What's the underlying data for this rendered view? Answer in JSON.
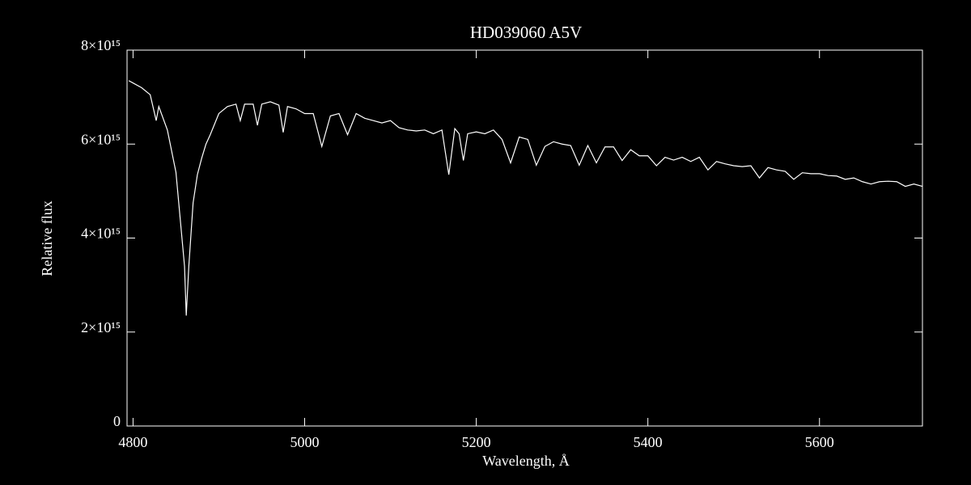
{
  "chart_data": {
    "type": "line",
    "title": "HD039060   A5V",
    "x_label": "Wavelength, Å",
    "y_label": "Relative flux",
    "x": [
      4795,
      4800,
      4810,
      4820,
      4827,
      4830,
      4840,
      4850,
      4855,
      4860,
      4862,
      4865,
      4870,
      4875,
      4880,
      4885,
      4890,
      4900,
      4910,
      4920,
      4925,
      4930,
      4940,
      4945,
      4950,
      4960,
      4970,
      4975,
      4980,
      4990,
      5000,
      5010,
      5020,
      5030,
      5040,
      5050,
      5060,
      5070,
      5080,
      5090,
      5100,
      5110,
      5120,
      5130,
      5140,
      5150,
      5160,
      5168,
      5175,
      5180,
      5185,
      5190,
      5200,
      5210,
      5220,
      5230,
      5240,
      5250,
      5260,
      5270,
      5280,
      5290,
      5300,
      5310,
      5320,
      5330,
      5340,
      5350,
      5360,
      5370,
      5380,
      5390,
      5400,
      5410,
      5420,
      5430,
      5440,
      5450,
      5460,
      5470,
      5480,
      5490,
      5500,
      5510,
      5520,
      5530,
      5540,
      5550,
      5560,
      5570,
      5580,
      5590,
      5600,
      5610,
      5620,
      5630,
      5640,
      5650,
      5660,
      5670,
      5680,
      5690,
      5700,
      5710,
      5720
    ],
    "series": [
      {
        "name": "HD039060",
        "color": "#ffffff",
        "values": [
          7350000000000000.0,
          7300000000000000.0,
          7200000000000000.0,
          7050000000000000.0,
          6500000000000000.0,
          6800000000000000.0,
          6300000000000000.0,
          5400000000000000.0,
          4400000000000000.0,
          3400000000000000.0,
          2350000000000000.0,
          3400000000000000.0,
          4750000000000000.0,
          5350000000000000.0,
          5700000000000000.0,
          6000000000000000.0,
          6200000000000000.0,
          6650000000000000.0,
          6800000000000000.0,
          6850000000000000.0,
          6500000000000000.0,
          6850000000000000.0,
          6850000000000000.0,
          6400000000000000.0,
          6850000000000000.0,
          6900000000000000.0,
          6830000000000000.0,
          6250000000000000.0,
          6800000000000000.0,
          6750000000000000.0,
          6650000000000000.0,
          6650000000000000.0,
          5950000000000000.0,
          6600000000000000.0,
          6650000000000000.0,
          6200000000000000.0,
          6650000000000000.0,
          6550000000000000.0,
          6500000000000000.0,
          6450000000000000.0,
          6500000000000000.0,
          6350000000000000.0,
          6300000000000000.0,
          6280000000000000.0,
          6300000000000000.0,
          6220000000000000.0,
          6300000000000000.0,
          5350000000000000.0,
          6330000000000000.0,
          6220000000000000.0,
          5650000000000000.0,
          6220000000000000.0,
          6260000000000000.0,
          6220000000000000.0,
          6300000000000000.0,
          6100000000000000.0,
          5600000000000000.0,
          6150000000000000.0,
          6100000000000000.0,
          5550000000000000.0,
          5950000000000000.0,
          6050000000000000.0,
          6000000000000000.0,
          5970000000000000.0,
          5550000000000000.0,
          5970000000000000.0,
          5600000000000000.0,
          5940000000000000.0,
          5940000000000000.0,
          5650000000000000.0,
          5880000000000000.0,
          5750000000000000.0,
          5750000000000000.0,
          5540000000000000.0,
          5720000000000000.0,
          5660000000000000.0,
          5720000000000000.0,
          5630000000000000.0,
          5720000000000000.0,
          5450000000000000.0,
          5630000000000000.0,
          5580000000000000.0,
          5540000000000000.0,
          5520000000000000.0,
          5540000000000000.0,
          5280000000000000.0,
          5500000000000000.0,
          5450000000000000.0,
          5420000000000000.0,
          5250000000000000.0,
          5390000000000000.0,
          5370000000000000.0,
          5370000000000000.0,
          5330000000000000.0,
          5320000000000000.0,
          5250000000000000.0,
          5280000000000000.0,
          5200000000000000.0,
          5150000000000000.0,
          5200000000000000.0,
          5210000000000000.0,
          5200000000000000.0,
          5100000000000000.0,
          5150000000000000.0,
          5100000000000000.0
        ]
      }
    ],
    "xlim": [
      4793,
      5720
    ],
    "xticks": [
      4800,
      5000,
      5200,
      5400,
      5600
    ],
    "ylim": [
      0,
      8000000000000000.0
    ],
    "yticks": [
      0,
      {
        "value": 2000000000000000.0,
        "label": "2×10¹⁵"
      },
      {
        "value": 4000000000000000.0,
        "label": "4×10¹⁵"
      },
      {
        "value": 6000000000000000.0,
        "label": "6×10¹⁵"
      },
      {
        "value": 8000000000000000.0,
        "label": "8×10¹⁵"
      }
    ]
  }
}
